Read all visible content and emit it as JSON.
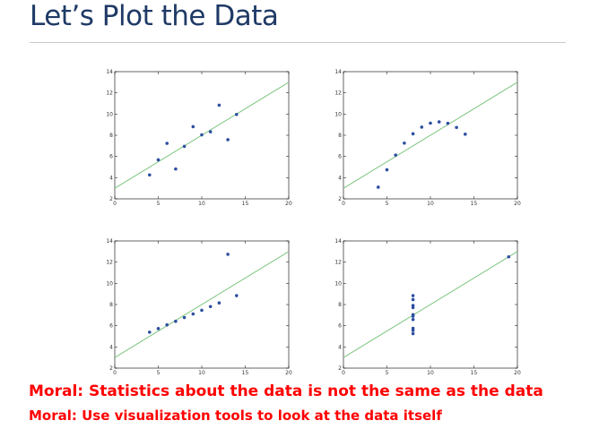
{
  "slide": {
    "title": "Let’s Plot the Data",
    "moral_1": "Moral: Statistics about the data is not the same as the data",
    "moral_2": "Moral: Use visualization tools to look at the data itself",
    "colors": {
      "title": "#1f3a66",
      "moral": "#ff0000",
      "points": "#2d4fa0",
      "fit_line": "#7ac47a"
    }
  },
  "chart_data": [
    {
      "type": "scatter",
      "title": "",
      "xlabel": "",
      "ylabel": "",
      "xlim": [
        0,
        20
      ],
      "ylim": [
        2,
        14
      ],
      "x_ticks": [
        0,
        5,
        10,
        15,
        20
      ],
      "y_ticks": [
        2,
        4,
        6,
        8,
        10,
        12,
        14
      ],
      "fit_line": {
        "slope": 0.5,
        "intercept": 3
      },
      "points": [
        [
          10,
          8.04
        ],
        [
          8,
          6.95
        ],
        [
          13,
          7.58
        ],
        [
          9,
          8.81
        ],
        [
          11,
          8.33
        ],
        [
          14,
          9.96
        ],
        [
          6,
          7.24
        ],
        [
          4,
          4.26
        ],
        [
          12,
          10.84
        ],
        [
          7,
          4.82
        ],
        [
          5,
          5.68
        ]
      ]
    },
    {
      "type": "scatter",
      "title": "",
      "xlabel": "",
      "ylabel": "",
      "xlim": [
        0,
        20
      ],
      "ylim": [
        2,
        14
      ],
      "x_ticks": [
        0,
        5,
        10,
        15,
        20
      ],
      "y_ticks": [
        2,
        4,
        6,
        8,
        10,
        12,
        14
      ],
      "fit_line": {
        "slope": 0.5,
        "intercept": 3
      },
      "points": [
        [
          10,
          9.14
        ],
        [
          8,
          8.14
        ],
        [
          13,
          8.74
        ],
        [
          9,
          8.77
        ],
        [
          11,
          9.26
        ],
        [
          14,
          8.1
        ],
        [
          6,
          6.13
        ],
        [
          4,
          3.1
        ],
        [
          12,
          9.13
        ],
        [
          7,
          7.26
        ],
        [
          5,
          4.74
        ]
      ]
    },
    {
      "type": "scatter",
      "title": "",
      "xlabel": "",
      "ylabel": "",
      "xlim": [
        0,
        20
      ],
      "ylim": [
        2,
        14
      ],
      "x_ticks": [
        0,
        5,
        10,
        15,
        20
      ],
      "y_ticks": [
        2,
        4,
        6,
        8,
        10,
        12,
        14
      ],
      "fit_line": {
        "slope": 0.5,
        "intercept": 3
      },
      "points": [
        [
          10,
          7.46
        ],
        [
          8,
          6.77
        ],
        [
          13,
          12.74
        ],
        [
          9,
          7.11
        ],
        [
          11,
          7.81
        ],
        [
          14,
          8.84
        ],
        [
          6,
          6.08
        ],
        [
          4,
          5.39
        ],
        [
          12,
          8.15
        ],
        [
          7,
          6.42
        ],
        [
          5,
          5.73
        ]
      ]
    },
    {
      "type": "scatter",
      "title": "",
      "xlabel": "",
      "ylabel": "",
      "xlim": [
        0,
        20
      ],
      "ylim": [
        2,
        14
      ],
      "x_ticks": [
        0,
        5,
        10,
        15,
        20
      ],
      "y_ticks": [
        2,
        4,
        6,
        8,
        10,
        12,
        14
      ],
      "fit_line": {
        "slope": 0.5,
        "intercept": 3
      },
      "points": [
        [
          8,
          6.58
        ],
        [
          8,
          5.76
        ],
        [
          8,
          7.71
        ],
        [
          8,
          8.84
        ],
        [
          8,
          8.47
        ],
        [
          8,
          7.04
        ],
        [
          8,
          5.25
        ],
        [
          19,
          12.5
        ],
        [
          8,
          5.56
        ],
        [
          8,
          7.91
        ],
        [
          8,
          6.89
        ]
      ]
    }
  ]
}
